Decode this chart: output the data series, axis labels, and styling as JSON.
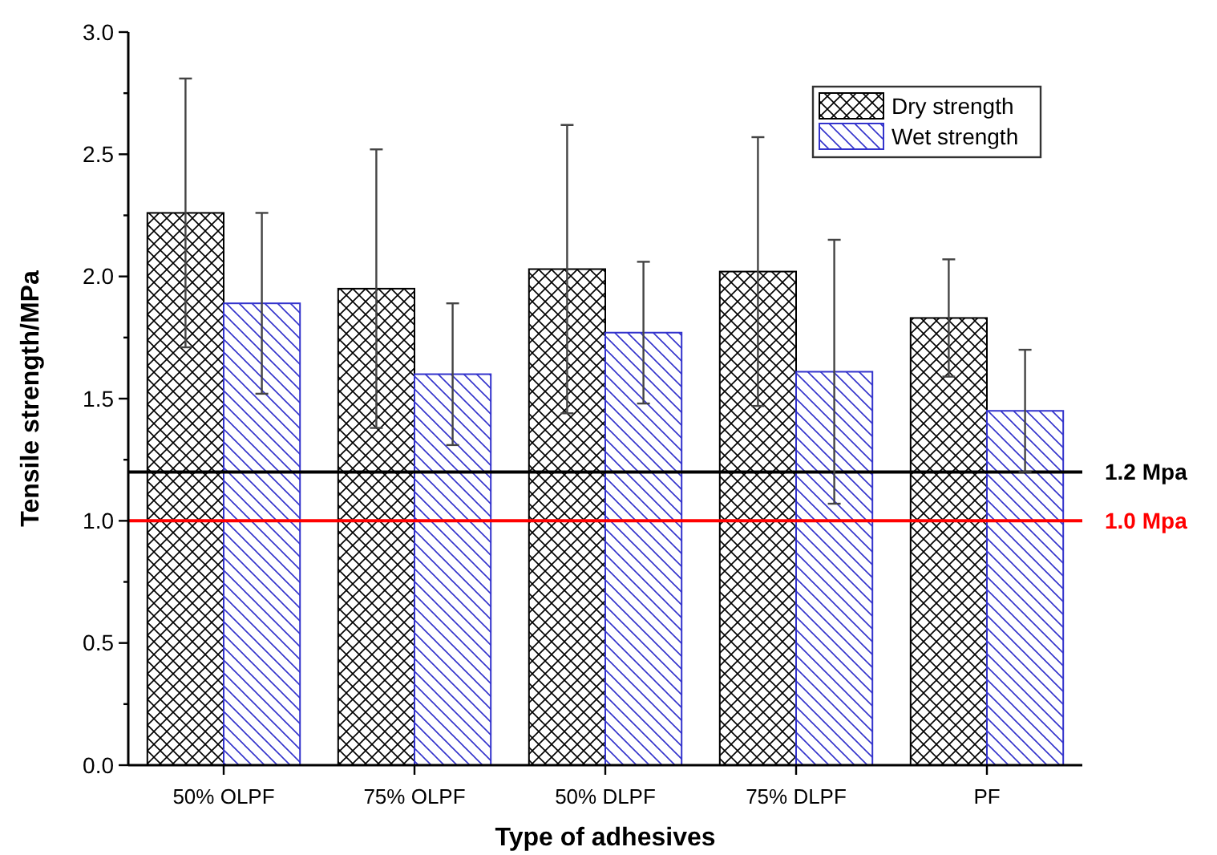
{
  "chart_data": {
    "type": "bar",
    "xlabel": "Type of adhesives",
    "ylabel": "Tensile strength/MPa",
    "categories": [
      "50% OLPF",
      "75% OLPF",
      "50% DLPF",
      "75% DLPF",
      "PF"
    ],
    "series": [
      {
        "name": "Dry strength",
        "color": "#000000",
        "values": [
          2.26,
          1.95,
          2.03,
          2.02,
          1.83
        ],
        "errors": [
          0.55,
          0.57,
          0.59,
          0.55,
          0.24
        ]
      },
      {
        "name": "Wet strength",
        "color": "#3333cc",
        "values": [
          1.89,
          1.6,
          1.77,
          1.61,
          1.45
        ],
        "errors": [
          0.37,
          0.29,
          0.29,
          0.54,
          0.25
        ]
      }
    ],
    "ylim": [
      0,
      3
    ],
    "yticks": [
      {
        "value": 0,
        "label": "0.0"
      },
      {
        "value": 0.25,
        "label": null
      },
      {
        "value": 0.5,
        "label": "0.5"
      },
      {
        "value": 0.75,
        "label": null
      },
      {
        "value": 1,
        "label": "1.0"
      },
      {
        "value": 1.25,
        "label": null
      },
      {
        "value": 1.5,
        "label": "1.5"
      },
      {
        "value": 1.75,
        "label": null
      },
      {
        "value": 2,
        "label": "2.0"
      },
      {
        "value": 2.25,
        "label": null
      },
      {
        "value": 2.5,
        "label": "2.5"
      },
      {
        "value": 2.75,
        "label": null
      },
      {
        "value": 3,
        "label": "3.0"
      }
    ],
    "ref_lines": [
      {
        "axis": "y",
        "value": 1.2,
        "label": "1.2 Mpa",
        "color": "#000000"
      },
      {
        "axis": "y",
        "value": 1.0,
        "label": "1.0 Mpa",
        "color": "#ff0000"
      }
    ],
    "legend": "top right",
    "grid": false
  }
}
